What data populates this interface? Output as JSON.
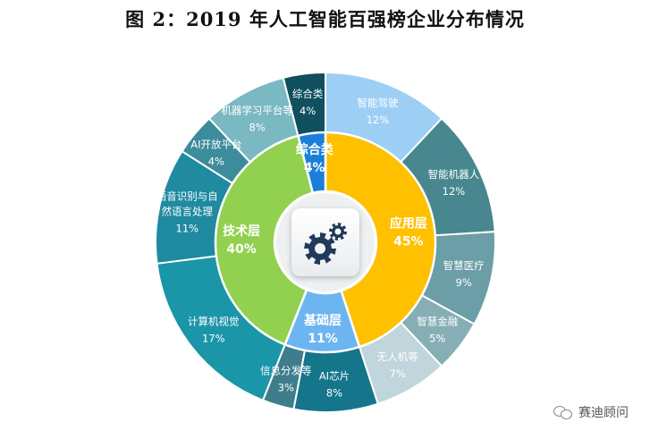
{
  "title": "图 2：2019 年人工智能百强榜企业分布情况",
  "watermark": "赛迪顾问",
  "center_icon": "gears-icon",
  "chart_data": {
    "type": "pie",
    "inner": [
      {
        "name": "应用层",
        "value": 45,
        "label": "45%",
        "color": "#ffc000"
      },
      {
        "name": "基础层",
        "value": 11,
        "label": "11%",
        "color": "#6db5f0"
      },
      {
        "name": "技术层",
        "value": 40,
        "label": "40%",
        "color": "#92d050"
      },
      {
        "name": "综合类",
        "value": 4,
        "label": "4%",
        "color": "#1a7fd8"
      }
    ],
    "outer": [
      {
        "name": "智能驾驶",
        "value": 12,
        "label": "12%",
        "color": "#9dcff5"
      },
      {
        "name": "智能机器人",
        "value": 12,
        "label": "12%",
        "color": "#48878f"
      },
      {
        "name": "智慧医疗",
        "value": 9,
        "label": "9%",
        "color": "#6b9ea6"
      },
      {
        "name": "智慧金融",
        "value": 5,
        "label": "5%",
        "color": "#86aeb5"
      },
      {
        "name": "无人机等",
        "value": 7,
        "label": "7%",
        "color": "#c0d5dc"
      },
      {
        "name": "AI芯片",
        "value": 8,
        "label": "8%",
        "color": "#14758b"
      },
      {
        "name": "信息分发等",
        "value": 3,
        "label": "3%",
        "color": "#3e7e8c"
      },
      {
        "name": "计算机视觉",
        "value": 17,
        "label": "17%",
        "color": "#1b95a8"
      },
      {
        "name": "语音识别与自然语言处理",
        "value": 11,
        "label": "11%",
        "color": "#1f8aa0"
      },
      {
        "name": "AI开放平台",
        "value": 4,
        "label": "4%",
        "color": "#3d8c9c"
      },
      {
        "name": "机器学习平台等",
        "value": 8,
        "label": "8%",
        "color": "#7ab8c2"
      },
      {
        "name": "综合类",
        "value": 4,
        "label": "4%",
        "color": "#0f4f5e"
      }
    ]
  }
}
